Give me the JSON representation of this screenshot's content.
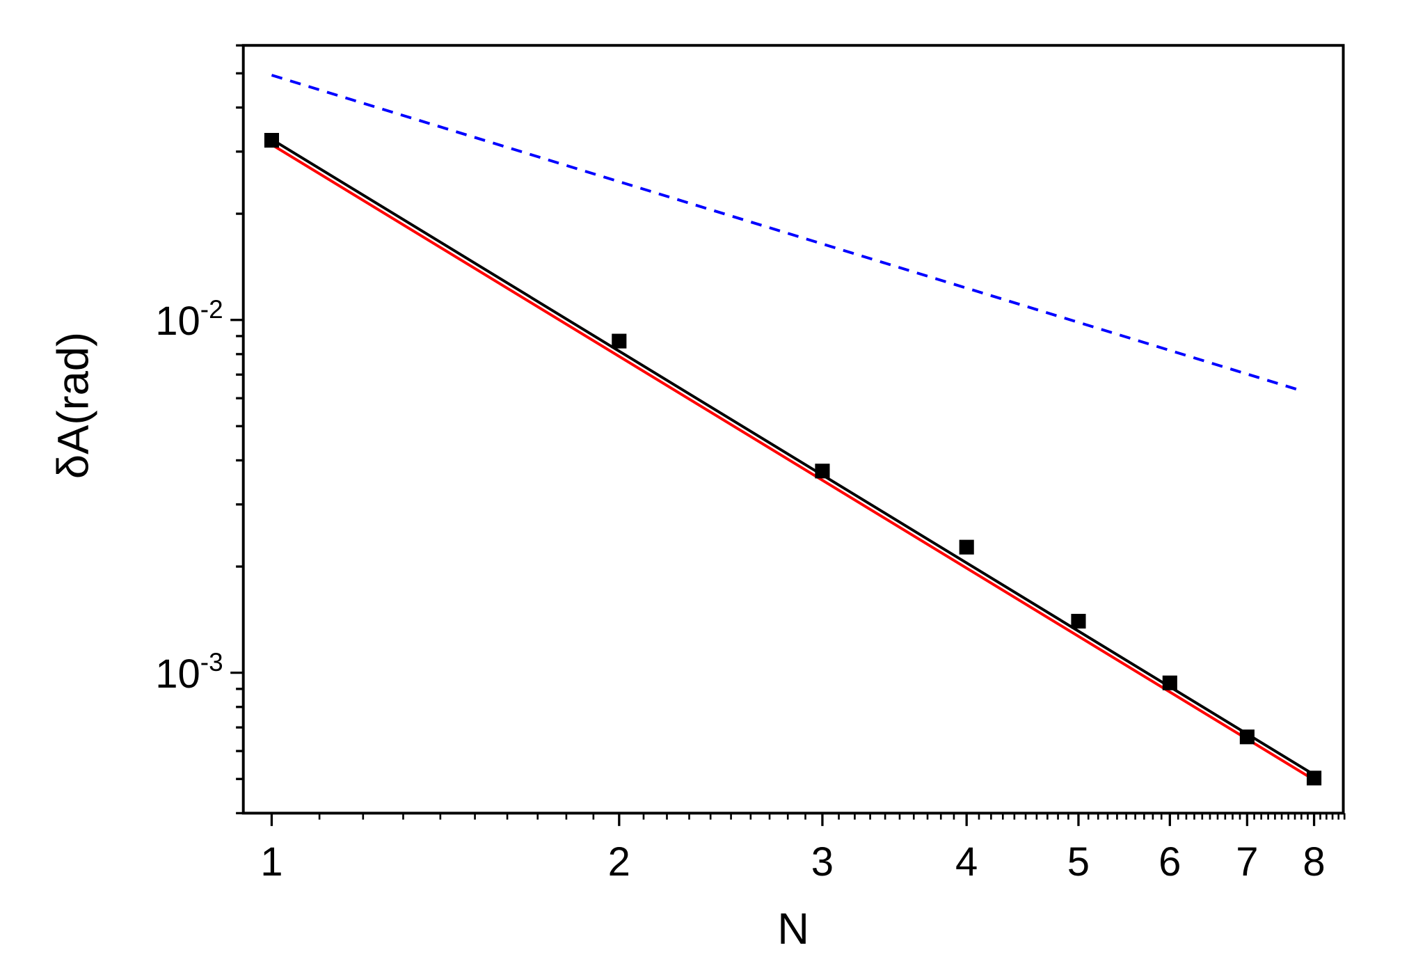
{
  "chart_data": {
    "type": "scatter",
    "title": "",
    "xlabel": "N",
    "ylabel": "δA(rad)",
    "xscale": "log",
    "yscale": "log",
    "xlim": [
      0.945,
      8.48
    ],
    "ylim": [
      0.0004,
      0.06
    ],
    "grid": false,
    "x_ticks": [
      {
        "value": 1,
        "label": "1"
      },
      {
        "value": 2,
        "label": "2"
      },
      {
        "value": 3,
        "label": "3"
      },
      {
        "value": 4,
        "label": "4"
      },
      {
        "value": 5,
        "label": "5"
      },
      {
        "value": 6,
        "label": "6"
      },
      {
        "value": 7,
        "label": "7"
      },
      {
        "value": 8,
        "label": "8"
      }
    ],
    "y_ticks": [
      {
        "value": 0.01,
        "base": "10",
        "exp": "-2"
      },
      {
        "value": 0.001,
        "base": "10",
        "exp": "-3"
      }
    ],
    "series": [
      {
        "kind": "markers",
        "marker": "square",
        "color": "#000000",
        "x": [
          1,
          2,
          3,
          4,
          5,
          6,
          7,
          8
        ],
        "y": [
          0.0323,
          0.00871,
          0.00373,
          0.00227,
          0.0014,
          0.000936,
          0.000658,
          0.000503
        ]
      },
      {
        "kind": "line",
        "style": "solid",
        "color": "#000000",
        "x": [
          1,
          8
        ],
        "y": [
          0.0325,
          0.000514
        ]
      },
      {
        "kind": "line",
        "style": "solid",
        "color": "#ff0000",
        "x": [
          1,
          8
        ],
        "y": [
          0.0314,
          0.000497
        ]
      },
      {
        "kind": "line",
        "style": "dashed",
        "color": "#0000ff",
        "x": [
          1,
          7.84
        ],
        "y": [
          0.0494,
          0.00627
        ]
      }
    ]
  }
}
